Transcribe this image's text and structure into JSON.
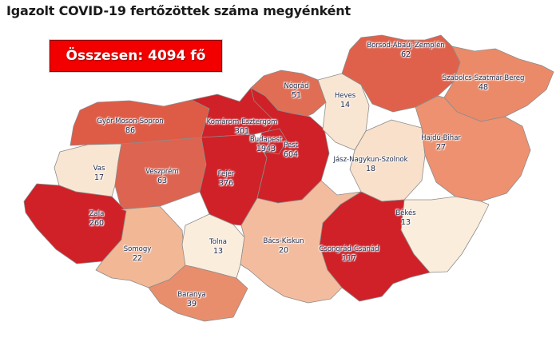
{
  "title": "Igazolt COVID-19 fertőzöttek száma megyénként",
  "total": {
    "label": "Összesen: 4094 fő",
    "value": 4094,
    "unit": "fő"
  },
  "colors": {
    "background": "#FFFFFF",
    "title_text": "#1A1A1A",
    "badge_bg": "#F20000",
    "badge_text": "#FFFFFF",
    "county_border": "#8C8C8C",
    "label_text": "#1E2A49",
    "scale_high": "#CF2127",
    "scale_low": "#FBEDDC"
  },
  "chart_data": {
    "type": "heatmap",
    "subtype": "choropleth-map",
    "region": "Hungary, counties (megyék)",
    "title": "Igazolt COVID-19 fertőzöttek száma megyénként",
    "total_label": "Összesen: 4094 fő",
    "total_value": 4094,
    "unit": "fő",
    "legend": "off",
    "counties": [
      {
        "id": "gyor-moson-sopron",
        "name": "Győr-Moson-Sopron",
        "value": 86,
        "color": "#DE5B46"
      },
      {
        "id": "komarom-esztergom",
        "name": "Komárom-Esztergom",
        "value": 301,
        "color": "#CF2127"
      },
      {
        "id": "vas",
        "name": "Vas",
        "value": 17,
        "color": "#F9E6D2"
      },
      {
        "id": "veszprem",
        "name": "Veszprém",
        "value": 63,
        "color": "#DD6450"
      },
      {
        "id": "zala",
        "name": "Zala",
        "value": 260,
        "color": "#CF2127"
      },
      {
        "id": "somogy",
        "name": "Somogy",
        "value": 22,
        "color": "#F2B795"
      },
      {
        "id": "baranya",
        "name": "Baranya",
        "value": 39,
        "color": "#E88E6D"
      },
      {
        "id": "tolna",
        "name": "Tolna",
        "value": 13,
        "color": "#FBEDDC"
      },
      {
        "id": "fejer",
        "name": "Fejér",
        "value": 376,
        "color": "#CF2127"
      },
      {
        "id": "pest",
        "name": "Pest",
        "value": 604,
        "color": "#CF2127"
      },
      {
        "id": "budapest",
        "name": "Budapest",
        "value": 1943,
        "color": "#CF2127"
      },
      {
        "id": "nograd",
        "name": "Nógrád",
        "value": 51,
        "color": "#DF6E55"
      },
      {
        "id": "heves",
        "name": "Heves",
        "value": 14,
        "color": "#F9E6D2"
      },
      {
        "id": "borsod-abauj-zemplen",
        "name": "Borsod-Abaúj-Zemplén",
        "value": 62,
        "color": "#E0614B"
      },
      {
        "id": "szabolcs-szatmar-bereg",
        "name": "Szabolcs-Szatmár-Bereg",
        "value": 48,
        "color": "#EB8A69"
      },
      {
        "id": "jasz-nagykun-szolnok",
        "name": "Jász-Nagykun-Szolnok",
        "value": 18,
        "color": "#F8E0CA"
      },
      {
        "id": "hajdu-bihar",
        "name": "Hajdú-Bihar",
        "value": 27,
        "color": "#ED9170"
      },
      {
        "id": "bekes",
        "name": "Békés",
        "value": 13,
        "color": "#FBEDDC"
      },
      {
        "id": "csongrad-csanad",
        "name": "Csongrád-Csanád",
        "value": 117,
        "color": "#CF2127"
      },
      {
        "id": "bacs-kiskun",
        "name": "Bács-Kiskun",
        "value": 20,
        "color": "#F4BC9E"
      }
    ]
  }
}
